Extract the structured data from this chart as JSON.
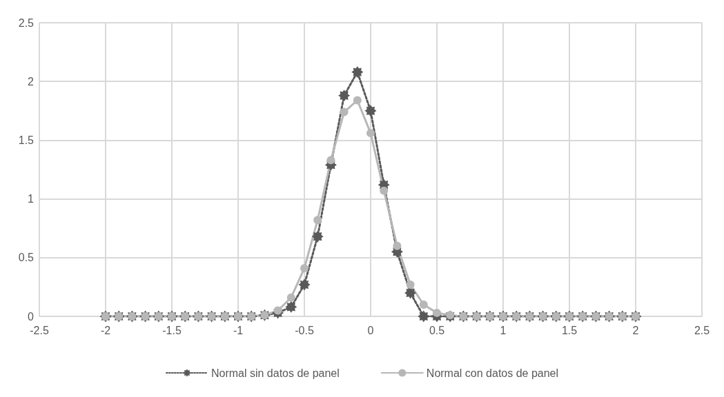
{
  "chart_data": {
    "type": "line",
    "x": [
      -2,
      -1.9,
      -1.8,
      -1.7,
      -1.6,
      -1.5,
      -1.4,
      -1.3,
      -1.2,
      -1.1,
      -1,
      -0.9,
      -0.8,
      -0.7,
      -0.6,
      -0.5,
      -0.4,
      -0.3,
      -0.2,
      -0.1,
      0,
      0.1,
      0.2,
      0.3,
      0.4,
      0.5,
      0.6,
      0.7,
      0.8,
      0.9,
      1,
      1.1,
      1.2,
      1.3,
      1.4,
      1.5,
      1.6,
      1.7,
      1.8,
      1.9,
      2
    ],
    "series": [
      {
        "name": "Normal sin datos de panel",
        "color": "#595959",
        "marker": "star",
        "line_style": "dotted",
        "values": [
          0,
          0,
          0,
          0,
          0,
          0,
          0,
          0,
          0,
          0,
          0,
          0,
          0.01,
          0.03,
          0.08,
          0.27,
          0.68,
          1.29,
          1.88,
          2.08,
          1.75,
          1.12,
          0.55,
          0.2,
          0,
          0,
          0,
          0,
          0,
          0,
          0,
          0,
          0,
          0,
          0,
          0,
          0,
          0,
          0,
          0,
          0
        ]
      },
      {
        "name": "Normal con datos de panel",
        "color": "#b7b7b7",
        "marker": "circle",
        "line_style": "solid",
        "values": [
          0,
          0,
          0,
          0,
          0,
          0,
          0,
          0,
          0,
          0,
          0,
          0,
          0.01,
          0.05,
          0.16,
          0.41,
          0.82,
          1.33,
          1.74,
          1.84,
          1.56,
          1.07,
          0.6,
          0.27,
          0.1,
          0.03,
          0.01,
          0,
          0,
          0,
          0,
          0,
          0,
          0,
          0,
          0,
          0,
          0,
          0,
          0,
          0
        ]
      }
    ],
    "xlim": [
      -2.5,
      2.5
    ],
    "xticks": [
      -2.5,
      -2,
      -1.5,
      -1,
      -0.5,
      0,
      0.5,
      1,
      1.5,
      2,
      2.5
    ],
    "ylim": [
      0,
      2.5
    ],
    "yticks": [
      0,
      0.5,
      1,
      1.5,
      2,
      2.5
    ],
    "grid": true,
    "legend": "bottom"
  }
}
